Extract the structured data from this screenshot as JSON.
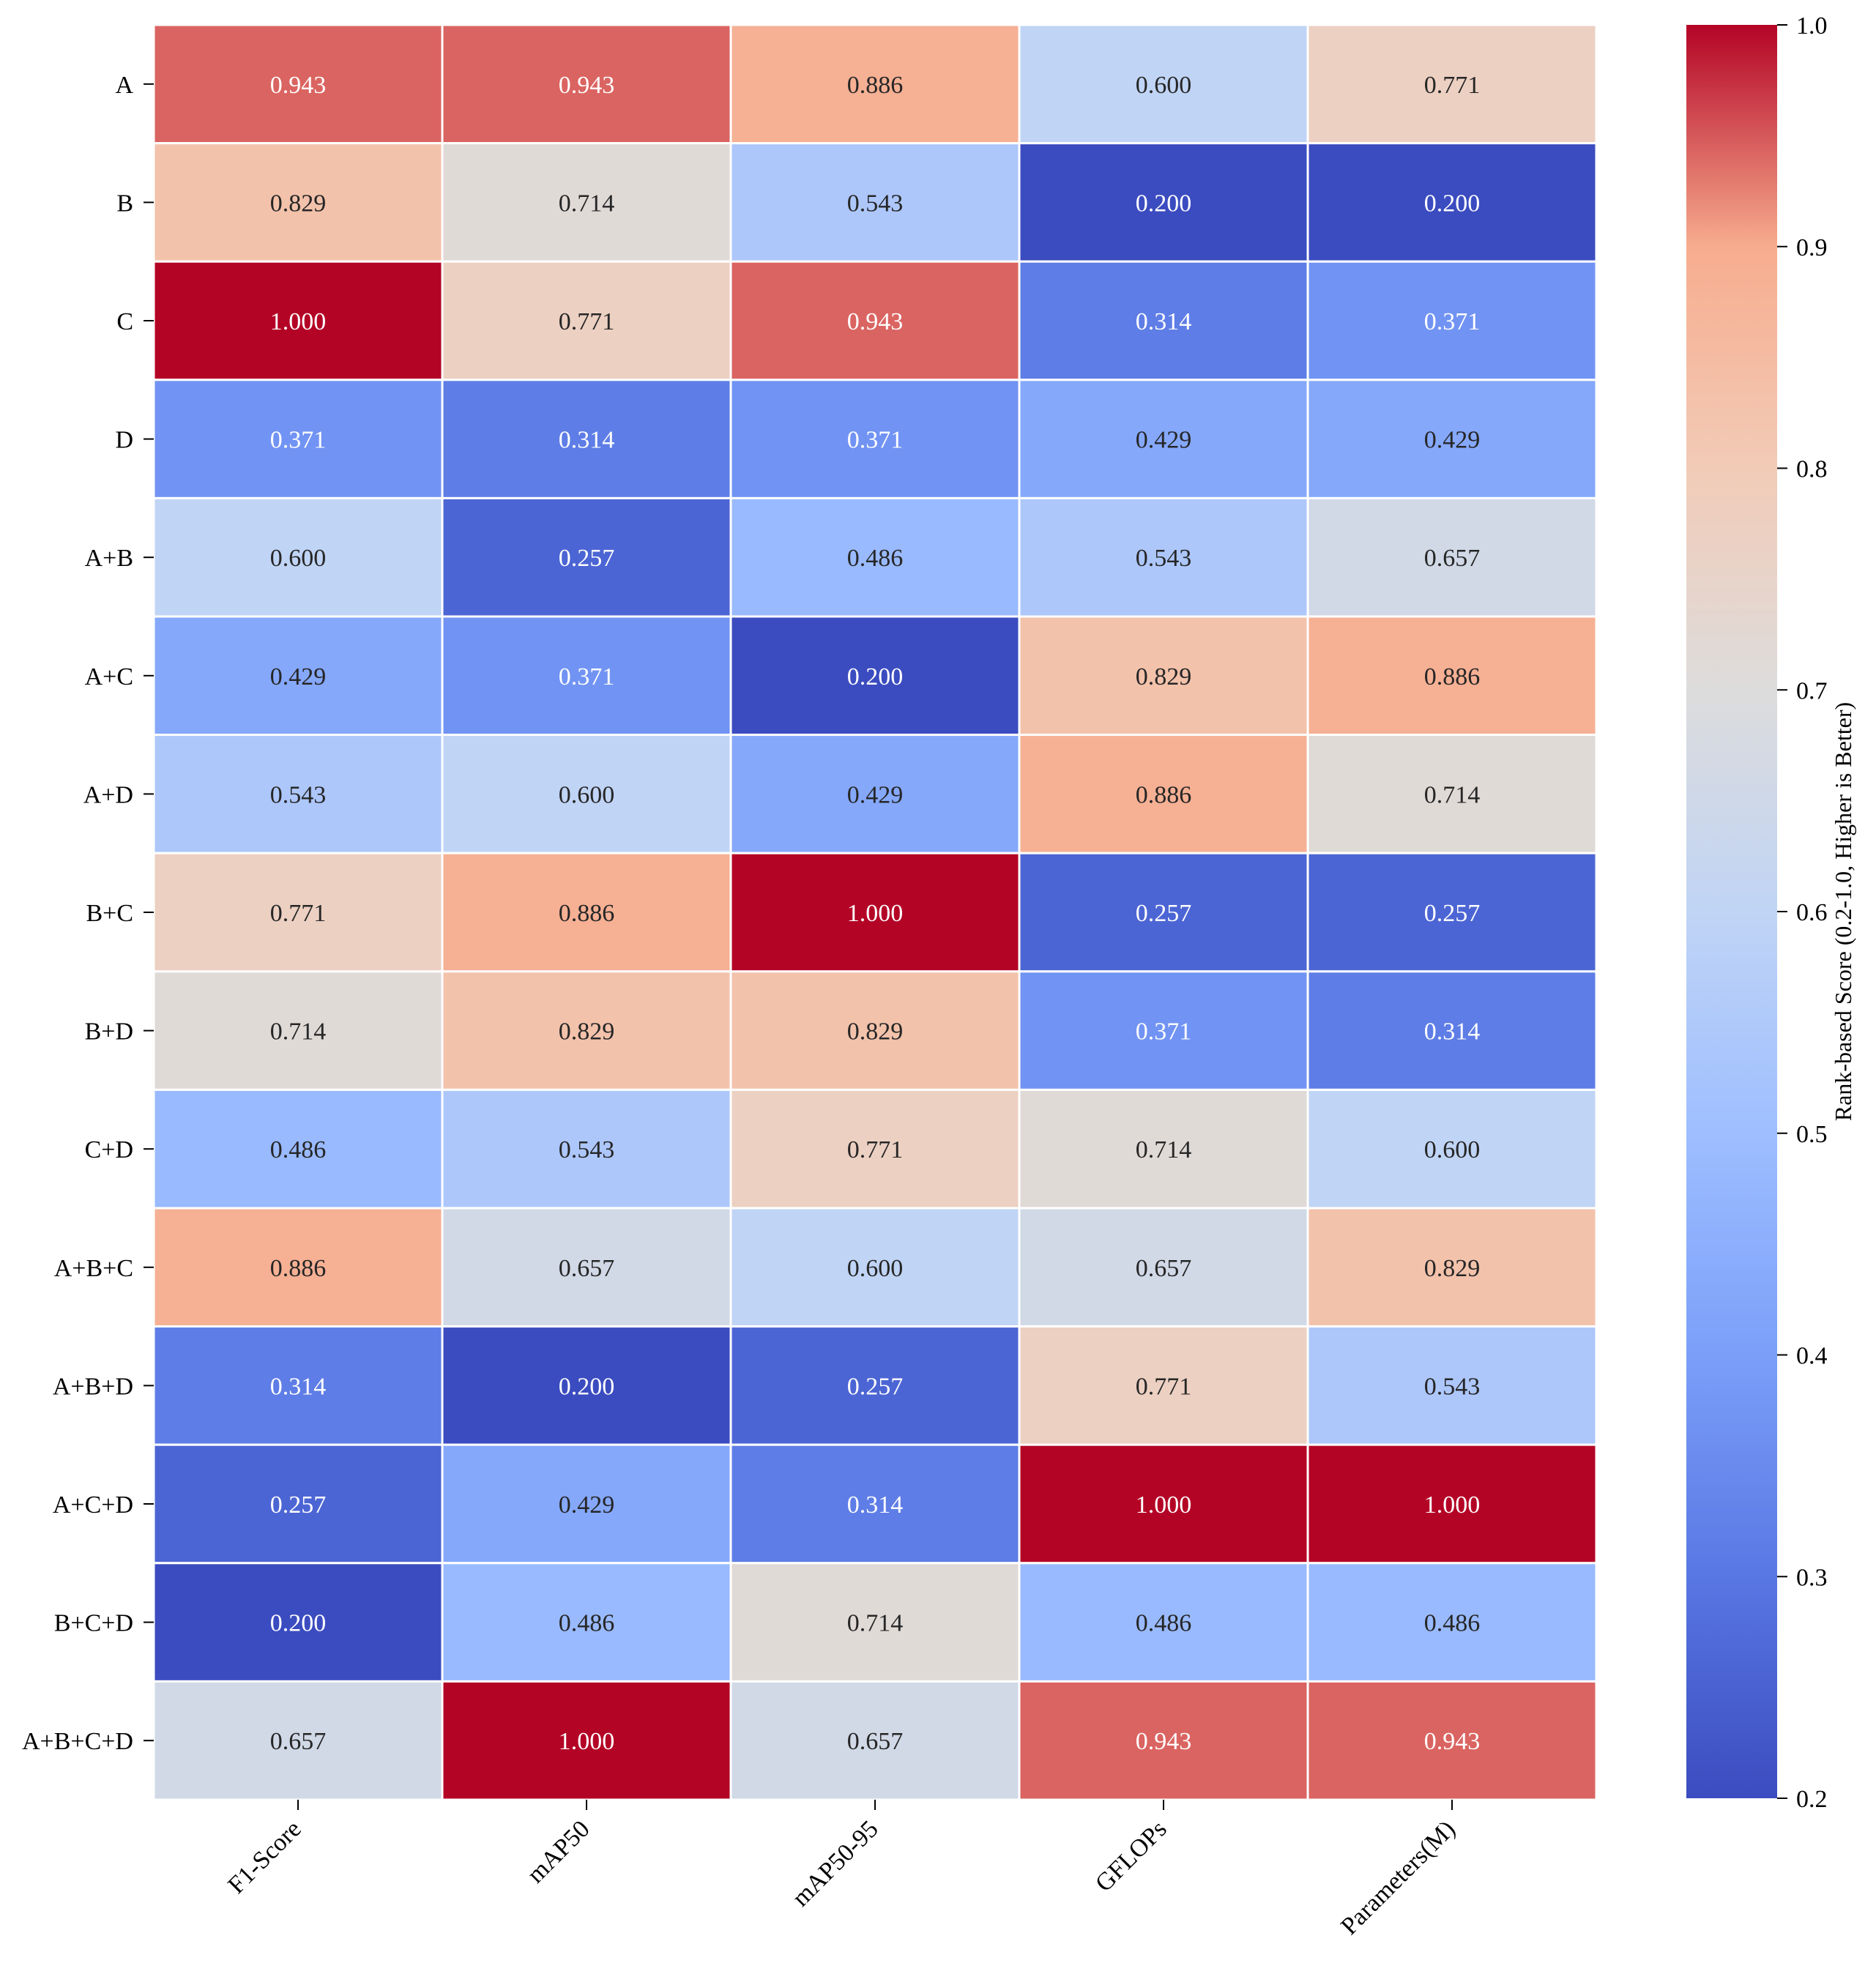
{
  "chart_data": {
    "type": "heatmap",
    "title": "",
    "xlabel": "",
    "ylabel": "",
    "rows": [
      "A",
      "B",
      "C",
      "D",
      "A+B",
      "A+C",
      "A+D",
      "B+C",
      "B+D",
      "C+D",
      "A+B+C",
      "A+B+D",
      "A+C+D",
      "B+C+D",
      "A+B+C+D"
    ],
    "columns": [
      "F1-Score",
      "mAP50",
      "mAP50-95",
      "GFLOPs",
      "Parameters(M)"
    ],
    "values": [
      [
        0.943,
        0.943,
        0.886,
        0.6,
        0.771
      ],
      [
        0.829,
        0.714,
        0.543,
        0.2,
        0.2
      ],
      [
        1.0,
        0.771,
        0.943,
        0.314,
        0.371
      ],
      [
        0.371,
        0.314,
        0.371,
        0.429,
        0.429
      ],
      [
        0.6,
        0.257,
        0.486,
        0.543,
        0.657
      ],
      [
        0.429,
        0.371,
        0.2,
        0.829,
        0.886
      ],
      [
        0.543,
        0.6,
        0.429,
        0.886,
        0.714
      ],
      [
        0.771,
        0.886,
        1.0,
        0.257,
        0.257
      ],
      [
        0.714,
        0.829,
        0.829,
        0.371,
        0.314
      ],
      [
        0.486,
        0.543,
        0.771,
        0.714,
        0.6
      ],
      [
        0.886,
        0.657,
        0.6,
        0.657,
        0.829
      ],
      [
        0.314,
        0.2,
        0.257,
        0.771,
        0.543
      ],
      [
        0.257,
        0.429,
        0.314,
        1.0,
        1.0
      ],
      [
        0.2,
        0.486,
        0.714,
        0.486,
        0.486
      ],
      [
        0.657,
        1.0,
        0.657,
        0.943,
        0.943
      ]
    ],
    "value_format": "0.000",
    "colormap": "coolwarm",
    "colorbar": {
      "label": "Rank-based Score (0.2-1.0, Higher is Better)",
      "range": [
        0.2,
        1.0
      ],
      "ticks": [
        "0.2",
        "0.3",
        "0.4",
        "0.5",
        "0.6",
        "0.7",
        "0.8",
        "0.9",
        "1.0"
      ]
    }
  }
}
